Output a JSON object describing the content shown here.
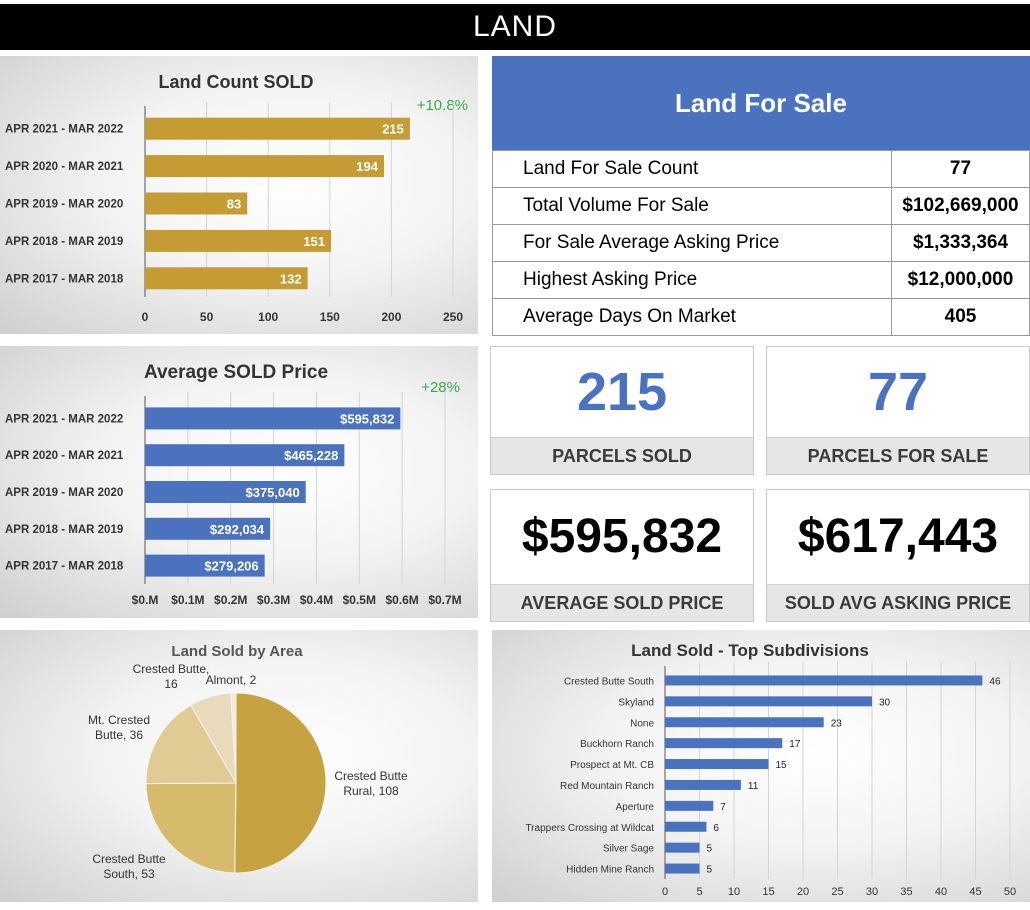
{
  "header": {
    "title": "LAND"
  },
  "colors": {
    "gold": "#c59b33",
    "blue": "#4a72bf",
    "green": "#3aa84a"
  },
  "land_for_sale": {
    "title": "Land For Sale",
    "rows": [
      {
        "label": "Land For Sale Count",
        "value": "77"
      },
      {
        "label": "Total Volume For Sale",
        "value": "$102,669,000"
      },
      {
        "label": "For Sale Average Asking Price",
        "value": "$1,333,364"
      },
      {
        "label": "Highest Asking Price",
        "value": "$12,000,000"
      },
      {
        "label": "Average Days On Market",
        "value": "405"
      }
    ]
  },
  "kpis": {
    "parcels_sold": {
      "value": "215",
      "label": "PARCELS SOLD"
    },
    "parcels_for_sale": {
      "value": "77",
      "label": "PARCELS FOR SALE"
    },
    "avg_sold_price": {
      "value": "$595,832",
      "label": "AVERAGE SOLD PRICE"
    },
    "sold_avg_asking": {
      "value": "$617,443",
      "label": "SOLD AVG ASKING PRICE"
    }
  },
  "chart_data": [
    {
      "type": "bar",
      "orientation": "horizontal",
      "title": "Land Count SOLD",
      "annotation": "+10.8%",
      "categories": [
        "APR 2021 - MAR 2022",
        "APR 2020 - MAR 2021",
        "APR 2019 - MAR 2020",
        "APR 2018 - MAR 2019",
        "APR 2017 - MAR 2018"
      ],
      "values": [
        215,
        194,
        83,
        151,
        132
      ],
      "data_labels": [
        "215",
        "194",
        "83",
        "151",
        "132"
      ],
      "xlim": [
        0,
        250
      ],
      "xticks": [
        0,
        50,
        100,
        150,
        200,
        250
      ],
      "xtick_labels": [
        "0",
        "50",
        "100",
        "150",
        "200",
        "250"
      ],
      "grid": true,
      "color": "#c59b33"
    },
    {
      "type": "bar",
      "orientation": "horizontal",
      "title": "Average SOLD Price",
      "annotation": "+28%",
      "categories": [
        "APR 2021 - MAR 2022",
        "APR 2020 - MAR 2021",
        "APR 2019 - MAR 2020",
        "APR 2018 - MAR 2019",
        "APR 2017 - MAR 2018"
      ],
      "values": [
        595832,
        465228,
        375040,
        292034,
        279206
      ],
      "data_labels": [
        "$595,832",
        "$465,228",
        "$375,040",
        "$292,034",
        "$279,206"
      ],
      "xlim": [
        0,
        700000
      ],
      "xticks": [
        0,
        100000,
        200000,
        300000,
        400000,
        500000,
        600000,
        700000
      ],
      "xtick_labels": [
        "$0.M",
        "$0.1M",
        "$0.2M",
        "$0.3M",
        "$0.4M",
        "$0.5M",
        "$0.6M",
        "$0.7M"
      ],
      "grid": true,
      "color": "#4a72bf"
    },
    {
      "type": "pie",
      "title": "Land Sold by Area",
      "slices": [
        {
          "label": "Crested Butte Rural",
          "value": 108,
          "color": "#c7a240"
        },
        {
          "label": "Crested Butte South",
          "value": 53,
          "color": "#d6bb6d"
        },
        {
          "label": "Mt. Crested Butte",
          "value": 36,
          "color": "#e0cb94"
        },
        {
          "label": "Crested Butte",
          "value": 16,
          "color": "#e8dabb"
        },
        {
          "label": "Almont",
          "value": 2,
          "color": "#f2ead9"
        }
      ],
      "label_lines": [
        [
          "Crested Butte",
          "Rural, 108"
        ],
        [
          "Crested Butte",
          "South, 53"
        ],
        [
          "Mt. Crested",
          "Butte, 36"
        ],
        [
          "Crested Butte,",
          "16"
        ],
        [
          "Almont, 2"
        ]
      ]
    },
    {
      "type": "bar",
      "orientation": "horizontal",
      "title": "Land Sold - Top Subdivisions",
      "categories": [
        "Crested Butte South",
        "Skyland",
        "None",
        "Buckhorn Ranch",
        "Prospect at Mt. CB",
        "Red Mountain Ranch",
        "Aperture",
        "Trappers Crossing at Wildcat",
        "Silver Sage",
        "Hidden Mine Ranch"
      ],
      "values": [
        46,
        30,
        23,
        17,
        15,
        11,
        7,
        6,
        5,
        5
      ],
      "data_labels": [
        "46",
        "30",
        "23",
        "17",
        "15",
        "11",
        "7",
        "6",
        "5",
        "5"
      ],
      "xlim": [
        0,
        50
      ],
      "xticks": [
        0,
        5,
        10,
        15,
        20,
        25,
        30,
        35,
        40,
        45,
        50
      ],
      "xtick_labels": [
        "0",
        "5",
        "10",
        "15",
        "20",
        "25",
        "30",
        "35",
        "40",
        "45",
        "50"
      ],
      "grid": true,
      "color": "#4a72bf"
    }
  ]
}
